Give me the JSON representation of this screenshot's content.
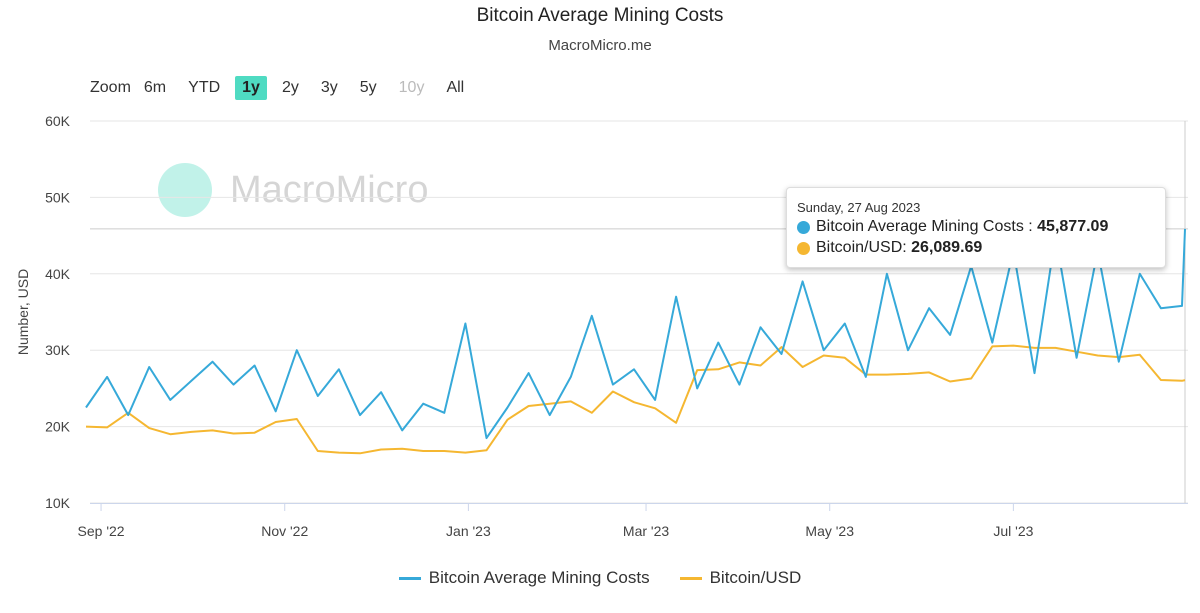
{
  "chart_data": {
    "type": "line",
    "title": "Bitcoin Average Mining Costs",
    "subtitle": "MacroMicro.me",
    "ylabel": "Number, USD",
    "xlabel": "",
    "ylim": [
      10000,
      60000
    ],
    "yticks": [
      "10K",
      "20K",
      "30K",
      "40K",
      "50K",
      "60K"
    ],
    "ytick_values": [
      10000,
      20000,
      30000,
      40000,
      50000,
      60000
    ],
    "xticks": [
      "Sep '22",
      "Nov '22",
      "Jan '23",
      "Mar '23",
      "May '23",
      "Jul '23"
    ],
    "xtick_dates": [
      "2022-09-01",
      "2022-11-01",
      "2023-01-01",
      "2023-03-01",
      "2023-05-01",
      "2023-07-01"
    ],
    "xlim": [
      "2022-08-27",
      "2023-08-27"
    ],
    "grid": true,
    "legend_position": "bottom",
    "x": [
      "2022-08-27",
      "2022-09-03",
      "2022-09-10",
      "2022-09-17",
      "2022-09-24",
      "2022-10-01",
      "2022-10-08",
      "2022-10-15",
      "2022-10-22",
      "2022-10-29",
      "2022-11-05",
      "2022-11-12",
      "2022-11-19",
      "2022-11-26",
      "2022-12-03",
      "2022-12-10",
      "2022-12-17",
      "2022-12-24",
      "2022-12-31",
      "2023-01-07",
      "2023-01-14",
      "2023-01-21",
      "2023-01-28",
      "2023-02-04",
      "2023-02-11",
      "2023-02-18",
      "2023-02-25",
      "2023-03-04",
      "2023-03-11",
      "2023-03-18",
      "2023-03-25",
      "2023-04-01",
      "2023-04-08",
      "2023-04-15",
      "2023-04-22",
      "2023-04-29",
      "2023-05-06",
      "2023-05-13",
      "2023-05-20",
      "2023-05-27",
      "2023-06-03",
      "2023-06-10",
      "2023-06-17",
      "2023-06-24",
      "2023-07-01",
      "2023-07-08",
      "2023-07-15",
      "2023-07-22",
      "2023-07-29",
      "2023-08-05",
      "2023-08-12",
      "2023-08-19",
      "2023-08-26",
      "2023-08-27"
    ],
    "series": [
      {
        "name": "Bitcoin Average Mining Costs",
        "color": "#36a9d9",
        "values": [
          22500,
          26500,
          21500,
          27800,
          23500,
          26000,
          28500,
          25500,
          28000,
          22000,
          30000,
          24000,
          27500,
          21500,
          24500,
          19500,
          23000,
          21800,
          33500,
          18500,
          22500,
          27000,
          21500,
          26500,
          34500,
          25500,
          27500,
          23500,
          37000,
          25000,
          31000,
          25500,
          33000,
          29500,
          39000,
          30000,
          33500,
          26500,
          40000,
          30000,
          35500,
          32000,
          41000,
          31000,
          43000,
          27000,
          45000,
          29000,
          43000,
          28500,
          40000,
          35500,
          35800,
          45877.09
        ]
      },
      {
        "name": "Bitcoin/USD",
        "color": "#f5b731",
        "values": [
          20000,
          19900,
          21800,
          19800,
          19000,
          19300,
          19500,
          19100,
          19200,
          20600,
          21000,
          16800,
          16600,
          16500,
          17000,
          17100,
          16800,
          16800,
          16600,
          16900,
          20900,
          22700,
          23000,
          23300,
          21800,
          24600,
          23200,
          22400,
          20500,
          27400,
          27500,
          28400,
          28000,
          30400,
          27800,
          29300,
          29000,
          26800,
          26800,
          26900,
          27100,
          25900,
          26300,
          30500,
          30600,
          30300,
          30300,
          29800,
          29300,
          29100,
          29400,
          26100,
          26000,
          26089.69
        ]
      }
    ]
  },
  "range_selector": {
    "zoom_label": "Zoom",
    "buttons": [
      {
        "label": "6m",
        "state": "normal"
      },
      {
        "label": "YTD",
        "state": "normal"
      },
      {
        "label": "1y",
        "state": "selected"
      },
      {
        "label": "2y",
        "state": "normal"
      },
      {
        "label": "3y",
        "state": "normal"
      },
      {
        "label": "5y",
        "state": "normal"
      },
      {
        "label": "10y",
        "state": "disabled"
      },
      {
        "label": "All",
        "state": "normal"
      }
    ],
    "accent_color": "#4fdbc2"
  },
  "watermark": "MacroMicro",
  "tooltip": {
    "date": "Sunday, 27 Aug 2023",
    "rows": [
      {
        "label": "Bitcoin Average Mining Costs : ",
        "value": "45,877.09",
        "color": "#36a9d9"
      },
      {
        "label": "Bitcoin/USD: ",
        "value": "26,089.69",
        "color": "#f5b731"
      }
    ]
  }
}
